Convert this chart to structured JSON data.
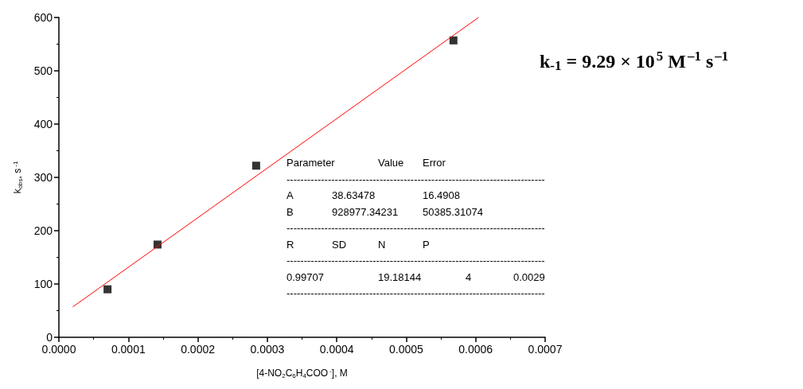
{
  "chart_data": {
    "type": "scatter",
    "xlabel": "[4-NO$_{2}$C$_{6}$H$_{4}$COO$^{-}$], M",
    "ylabel": "k$_{obs}$, s$^{-1}$",
    "series": [
      {
        "color": "#000000",
        "x": [
          7e-05,
          0.000142,
          0.000284,
          0.000568
        ],
        "values": [
          90,
          174,
          322,
          557
        ],
        "marker": "square"
      },
      {
        "type": "line",
        "color": "#ff0000",
        "x": [
          2e-05,
          0.000604
        ],
        "values": [
          57,
          600
        ],
        "marker": "none",
        "line_style": "solid"
      }
    ],
    "xlim": [
      0,
      0.0007
    ],
    "xticks": [
      {
        "value": 0,
        "label": "0.0000"
      },
      {
        "value": 0.0001,
        "label": "0.0001"
      },
      {
        "value": 0.0002,
        "label": "0.0002"
      },
      {
        "value": 0.0003,
        "label": "0.0003"
      },
      {
        "value": 0.0004,
        "label": "0.0004"
      },
      {
        "value": 0.0005,
        "label": "0.0005"
      },
      {
        "value": 0.0006,
        "label": "0.0006"
      },
      {
        "value": 0.0007,
        "label": "0.0007"
      }
    ],
    "ylim": [
      0,
      600
    ],
    "yticks": [
      0,
      100,
      200,
      300,
      400,
      500,
      600
    ],
    "grid": false,
    "annotations": [
      "k$_{-1}$ = 9.29 × 10$^{5}$ M$^{–1}$ s$^{–1}$",
      "Parameter\t\tValue\tError",
      "---------------------------------------------------------------------------",
      "A\t38.63478\t\t16.4908",
      "B\t928977.34231\t\t50385.31074",
      "---------------------------------------------------------------------------",
      "R\tSD\tN\tP",
      "---------------------------------------------------------------------------",
      "0.99707\t\t19.18144\t\t4\t0.0029",
      "---------------------------------------------------------------------------"
    ]
  }
}
